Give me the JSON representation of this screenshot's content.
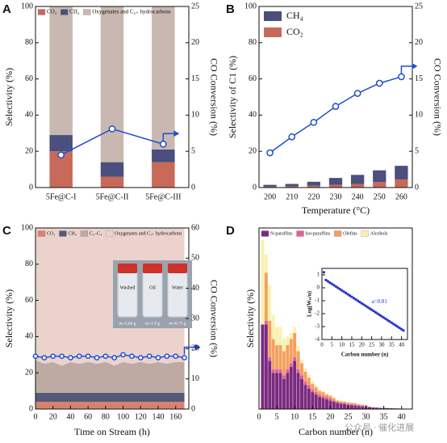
{
  "watermark": "公众号 · 催化进展",
  "chart_data": [
    {
      "label": "A",
      "type": "bar",
      "categories": [
        "5Fe@C-I",
        "5Fe@C-II",
        "5Fe@C-III"
      ],
      "ylabel": "Selectivity (%)",
      "y2label": "CO Conversion (%)",
      "ylim": [
        0,
        100
      ],
      "yticks": [
        0,
        20,
        40,
        60,
        80,
        100
      ],
      "y2lim": [
        0,
        25
      ],
      "y2ticks": [
        0,
        5,
        10,
        15,
        20,
        25
      ],
      "legend": "top",
      "series": [
        {
          "name": "CO₂",
          "color": "#c8695a",
          "values": [
            20,
            6,
            14
          ]
        },
        {
          "name": "CH₄",
          "color": "#4a4f7d",
          "values": [
            9,
            8,
            7
          ]
        },
        {
          "name": "Oxygenates and C₂₊ hydrocarbons",
          "color": "#c9b8b1",
          "values": [
            71,
            86,
            79
          ]
        },
        {
          "color": "#1f4fd0",
          "axis": "y2",
          "values": [
            4.5,
            8.1,
            6
          ]
        }
      ]
    },
    {
      "label": "B",
      "type": "bar",
      "categories": [
        "200",
        "210",
        "220",
        "230",
        "240",
        "250",
        "260"
      ],
      "xlabel": "Temperature (°C)",
      "ylabel": "Selectivity of C1 (%)",
      "y2label": "CO Conversion (%)",
      "ylim": [
        0,
        100
      ],
      "yticks": [
        0,
        20,
        40,
        60,
        80,
        100
      ],
      "y2lim": [
        0,
        25
      ],
      "y2ticks": [
        0,
        5,
        10,
        15,
        20,
        25
      ],
      "legend": "upper left",
      "legend_reversed": true,
      "series": [
        {
          "name": "CO₂",
          "color": "#c8695a",
          "values": [
            0.5,
            0.7,
            1,
            1.5,
            2,
            3,
            4.5
          ]
        },
        {
          "name": "CH₄",
          "color": "#4a4f7d",
          "values": [
            1,
            1.3,
            2.2,
            3.8,
            5,
            6.5,
            7.5
          ]
        },
        {
          "color": "#1f4fd0",
          "axis": "y2",
          "values": [
            4.8,
            7,
            9,
            11.2,
            13,
            14.4,
            15.3
          ]
        }
      ]
    },
    {
      "label": "C",
      "type": "area",
      "x": [
        0,
        10,
        20,
        30,
        40,
        50,
        60,
        70,
        80,
        90,
        100,
        110,
        120,
        130,
        140,
        150,
        160,
        170
      ],
      "xlabel": "Time on Stream (h)",
      "ylabel": "Selectivity (%)",
      "y2label": "CO Conversion (%)",
      "xlim": [
        0,
        175
      ],
      "xticks": [
        0,
        20,
        40,
        60,
        80,
        100,
        120,
        140,
        160
      ],
      "ylim": [
        0,
        100
      ],
      "yticks": [
        0,
        20,
        40,
        60,
        80,
        100
      ],
      "y2lim": [
        0,
        60
      ],
      "y2ticks": [
        0,
        10,
        20,
        30,
        40,
        50,
        60
      ],
      "legend": "top",
      "bottle_labels": [
        "Washed",
        "Oil",
        "Water"
      ],
      "mass_labels": [
        "m=3.64 g",
        "m=1.6 g",
        "m=0.75 g"
      ],
      "series": [
        {
          "name": "CO₂",
          "color": "#d9816f",
          "values": [
            4,
            4,
            4,
            4,
            4,
            4,
            4,
            4,
            4,
            4,
            4,
            4,
            4,
            4,
            4,
            4,
            4,
            4
          ]
        },
        {
          "name": "CH₄",
          "color": "#545a7a",
          "values": [
            5,
            5,
            5,
            5,
            5,
            5,
            5,
            5,
            5,
            5,
            5,
            5,
            5,
            5,
            5,
            5,
            5,
            5
          ]
        },
        {
          "name": "C₂–C₄",
          "color": "#bcaaa3",
          "values": [
            18,
            16,
            17,
            15,
            17,
            16,
            17,
            16,
            17,
            15,
            17,
            16,
            17,
            16,
            17,
            16,
            17,
            17
          ]
        },
        {
          "name": "Oxygenates and C₅₊ hydrocarbons",
          "color": "#ebd2cd",
          "values": [
            73,
            75,
            74,
            76,
            74,
            75,
            74,
            75,
            74,
            76,
            74,
            75,
            74,
            75,
            74,
            75,
            74,
            74
          ]
        },
        {
          "color": "#1f4fd0",
          "axis": "y2",
          "values": [
            17.5,
            17,
            17.5,
            17.5,
            17,
            17.5,
            17.5,
            17,
            17.5,
            17,
            18,
            17.5,
            17,
            17.5,
            17,
            17.5,
            17.5,
            17
          ]
        }
      ]
    },
    {
      "label": "D",
      "type": "bar",
      "x": [
        1,
        2,
        3,
        4,
        5,
        6,
        7,
        8,
        9,
        10,
        11,
        12,
        13,
        14,
        15,
        16,
        17,
        18,
        19,
        20,
        21,
        22,
        23,
        24,
        25,
        26,
        27,
        28,
        29,
        30,
        31,
        32,
        33,
        34,
        35,
        36,
        37,
        38,
        39,
        40,
        41,
        42
      ],
      "xlabel": "Carbon number (n)",
      "ylabel": "Selectivity (%)",
      "xlim": [
        0,
        43
      ],
      "xticks": [
        0,
        5,
        10,
        15,
        20,
        25,
        30,
        35,
        40
      ],
      "ylim": [
        0,
        15
      ],
      "legend": "top",
      "series": [
        {
          "name": "N-paraffins",
          "color": "#7b2a7f",
          "values": [
            7,
            7,
            4,
            3,
            3,
            3,
            2.5,
            3,
            3.5,
            4,
            3,
            2.5,
            2,
            1.7,
            1.4,
            1.2,
            1,
            0.9,
            0.8,
            0.7,
            0.6,
            0.5,
            0.45,
            0.4,
            0.35,
            0.3,
            0.27,
            0.24,
            0.2,
            0.18,
            0.16,
            0.14,
            0.12,
            0.1,
            0.09,
            0.08,
            0.07,
            0.06,
            0.05,
            0.04,
            0.03,
            0.03
          ]
        },
        {
          "name": "Iso-paraffins",
          "color": "#e0609a",
          "values": [
            0,
            0.3,
            0.3,
            0.3,
            0.3,
            0.3,
            0.3,
            0.3,
            0.3,
            0.3,
            0.3,
            0.3,
            0.3,
            0.3,
            0.2,
            0.2,
            0.2,
            0.2,
            0.2,
            0.2,
            0.1,
            0.1,
            0.1,
            0.1,
            0.1,
            0.1,
            0.1,
            0.1,
            0.1,
            0.1,
            0,
            0,
            0,
            0,
            0,
            0,
            0,
            0,
            0,
            0,
            0,
            0
          ]
        },
        {
          "name": "Olefins",
          "color": "#f4a060",
          "values": [
            0,
            4,
            3,
            2.5,
            2,
            2,
            2,
            2,
            2,
            2,
            1.5,
            1,
            0.8,
            0.6,
            0.5,
            0.4,
            0.3,
            0.3,
            0.2,
            0.2,
            0.2,
            0.1,
            0.1,
            0.1,
            0.1,
            0.1,
            0.1,
            0.05,
            0.05,
            0.05,
            0.05,
            0,
            0,
            0,
            0,
            0,
            0,
            0,
            0,
            0,
            0,
            0
          ]
        },
        {
          "name": "Alcohols",
          "color": "#fbf1b0",
          "values": [
            7,
            1.5,
            3,
            2,
            1.5,
            1.5,
            1,
            0.7,
            0.5,
            0.5,
            0.4,
            0.3,
            0.3,
            0.2,
            0.2,
            0.2,
            0.1,
            0.1,
            0.1,
            0.1,
            0.1,
            0.1,
            0.05,
            0.05,
            0.05,
            0.05,
            0.05,
            0,
            0,
            0,
            0,
            0,
            0,
            0,
            0,
            0,
            0,
            0,
            0,
            0,
            0,
            0
          ]
        }
      ]
    },
    {
      "type": "scatter",
      "x": [
        1,
        2,
        3,
        4,
        5,
        6,
        7,
        8,
        9,
        10,
        11,
        12,
        13,
        14,
        15,
        16,
        17,
        18,
        19,
        20,
        21,
        22,
        23,
        24,
        25,
        26,
        27,
        28,
        29,
        30,
        31,
        32,
        33,
        34,
        35,
        36,
        37,
        38,
        39,
        40,
        41
      ],
      "values": [
        1.2,
        0.6,
        0.5,
        0.4,
        0.3,
        0.2,
        0.1,
        0,
        -0.1,
        -0.2,
        -0.3,
        -0.4,
        -0.5,
        -0.6,
        -0.7,
        -0.8,
        -0.9,
        -1,
        -1.1,
        -1.2,
        -1.3,
        -1.4,
        -1.5,
        -1.6,
        -1.7,
        -1.8,
        -1.9,
        -2,
        -2.1,
        -2.2,
        -2.3,
        -2.4,
        -2.5,
        -2.6,
        -2.7,
        -2.8,
        -2.9,
        -3,
        -3.1,
        -3.2,
        -3.3
      ],
      "color": "#2233cc",
      "xlabel": "Carbon number (n)",
      "ylabel": "Log(Wₙ/n)",
      "xlim": [
        0,
        43
      ],
      "xticks": [
        0,
        5,
        10,
        15,
        20,
        25,
        30,
        35,
        40
      ],
      "ylim": [
        -4,
        1.5
      ],
      "yticks": [
        -4,
        -3,
        -2,
        -1,
        0,
        1
      ],
      "annotation": "a=0.81"
    }
  ]
}
